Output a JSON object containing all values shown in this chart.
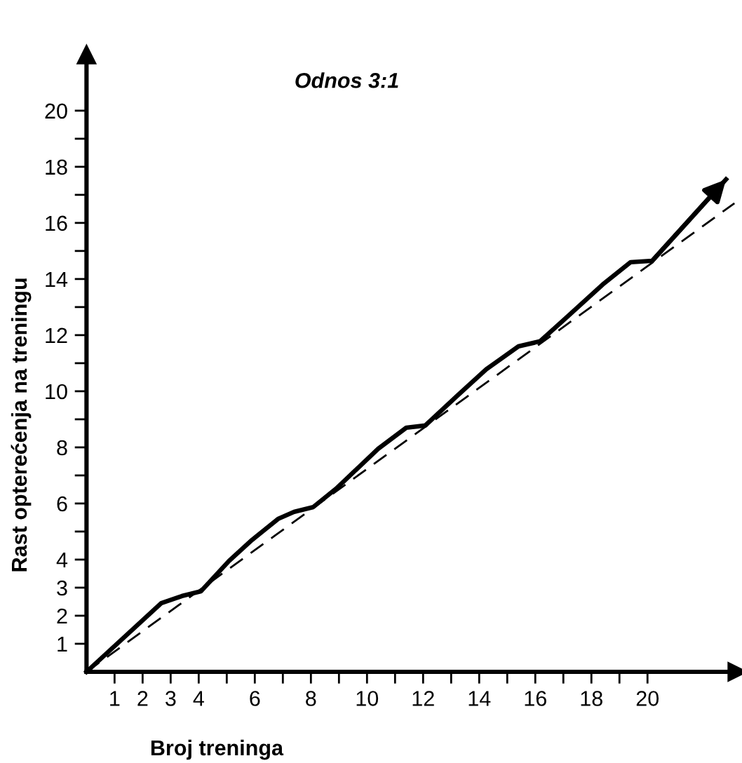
{
  "chart_data": {
    "type": "line",
    "title": "Odnos 3:1",
    "xlabel": "Broj treninga",
    "ylabel": "Rast opterećenja na treningu",
    "xlim": [
      0,
      23.2
    ],
    "ylim": [
      0,
      22
    ],
    "xticks": [
      1,
      2,
      3,
      4,
      {
        "value": 5,
        "label": null
      },
      6,
      {
        "value": 7,
        "label": null
      },
      8,
      {
        "value": 9,
        "label": null
      },
      10,
      {
        "value": 11,
        "label": null
      },
      12,
      {
        "value": 13,
        "label": null
      },
      14,
      {
        "value": 15,
        "label": null
      },
      16,
      {
        "value": 17,
        "label": null
      },
      18,
      {
        "value": 19,
        "label": null
      },
      20
    ],
    "yticks": [
      1,
      2,
      3,
      4,
      {
        "value": 5,
        "label": null
      },
      6,
      {
        "value": 7,
        "label": null
      },
      8,
      {
        "value": 9,
        "label": null
      },
      10,
      {
        "value": 11,
        "label": null
      },
      12,
      {
        "value": 13,
        "label": null
      },
      14,
      {
        "value": 15,
        "label": null
      },
      16,
      {
        "value": 17,
        "label": null
      },
      18,
      {
        "value": 19,
        "label": null
      },
      20
    ],
    "grid": false,
    "legend": false,
    "marker": "none",
    "series": [
      {
        "color": "#000000",
        "line_style": "solid",
        "x": [
          0,
          2.67,
          3.4,
          4.08,
          5.08,
          5.9,
          6.83,
          7.4,
          8.08,
          8.9,
          10.4,
          11.4,
          12.08,
          13.25,
          14.25,
          15.4,
          16.17,
          17.08,
          18.4,
          19.4,
          20.17,
          22.8
        ],
        "values": [
          0,
          2.45,
          2.7,
          2.87,
          3.95,
          4.7,
          5.45,
          5.7,
          5.87,
          6.53,
          7.95,
          8.7,
          8.78,
          9.87,
          10.78,
          11.6,
          11.78,
          12.6,
          13.8,
          14.6,
          14.65,
          17.55
        ]
      },
      {
        "color": "#000000",
        "line_style": "dashed",
        "x": [
          0,
          23.1
        ],
        "values": [
          0,
          16.7
        ]
      }
    ]
  }
}
